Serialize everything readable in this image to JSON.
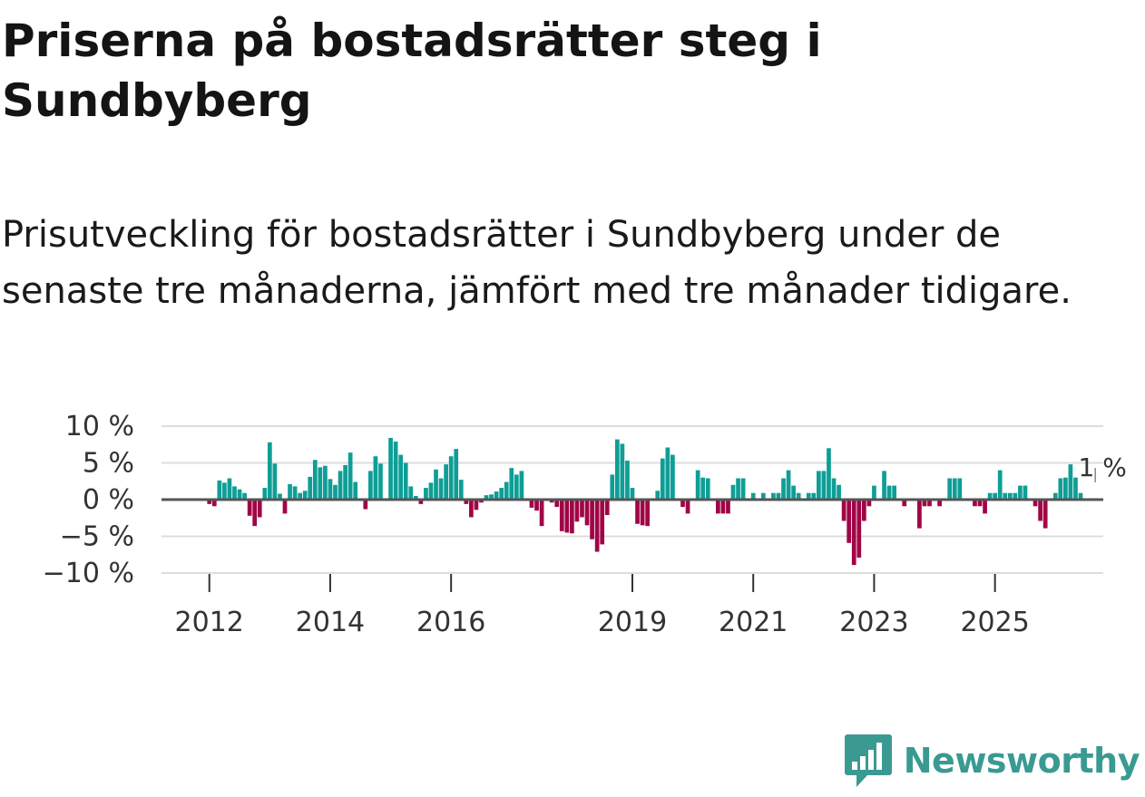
{
  "title": "Priserna på bostadsrätter steg i Sundbyberg",
  "subtitle": "Prisutveckling för bostadsrätter i Sundbyberg under de senaste tre månaderna, jämfört med tre månader tidigare.",
  "logo": {
    "text": "Newsworthy",
    "icon": "newsworthy-chart-bubble-icon"
  },
  "colors": {
    "positive": "#0e9e96",
    "negative": "#a00546",
    "grid": "#dddddd",
    "zero": "#555555",
    "logo": "#3a9a92"
  },
  "chart_data": {
    "type": "bar",
    "title": "",
    "xlabel": "",
    "ylabel": "",
    "ylim": [
      -10.5,
      10.5
    ],
    "y_ticks": [
      {
        "value": 10,
        "label": "10 %"
      },
      {
        "value": 5,
        "label": "5 %"
      },
      {
        "value": 0,
        "label": "0 %"
      },
      {
        "value": -5,
        "label": "−5 %"
      },
      {
        "value": -10,
        "label": "−10 %"
      }
    ],
    "x_ticks": [
      {
        "month_index": 0,
        "label": "2012"
      },
      {
        "month_index": 24,
        "label": "2014"
      },
      {
        "month_index": 48,
        "label": "2016"
      },
      {
        "month_index": 84,
        "label": "2019"
      },
      {
        "month_index": 108,
        "label": "2021"
      },
      {
        "month_index": 132,
        "label": "2023"
      },
      {
        "month_index": 156,
        "label": "2025"
      }
    ],
    "x_start_index": -9,
    "x_end_index": 177,
    "first_month": "2012-01",
    "series": [
      {
        "name": "Prisutveckling",
        "values": [
          -0.6,
          -0.9,
          2.6,
          2.3,
          2.9,
          1.8,
          1.4,
          0.9,
          -2.2,
          -3.6,
          -2.4,
          1.6,
          7.8,
          4.9,
          0.8,
          -1.9,
          2.1,
          1.8,
          0.9,
          1.2,
          3.1,
          5.4,
          4.4,
          4.6,
          2.8,
          2.0,
          3.9,
          4.7,
          6.4,
          2.4,
          0,
          -1.3,
          3.9,
          5.9,
          4.9,
          0,
          8.4,
          7.9,
          6.1,
          5.0,
          1.8,
          0.5,
          -0.6,
          1.6,
          2.3,
          4.1,
          2.9,
          4.8,
          5.9,
          6.9,
          2.7,
          -0.6,
          -2.4,
          -1.4,
          -0.4,
          0.6,
          0.7,
          1.1,
          1.6,
          2.4,
          4.3,
          3.4,
          3.9,
          0,
          -1.1,
          -1.5,
          -3.6,
          0,
          -0.4,
          -1.0,
          -4.3,
          -4.5,
          -4.6,
          -3.0,
          -2.4,
          -3.5,
          -5.4,
          -7.1,
          -6.1,
          -2.1,
          3.4,
          8.2,
          7.6,
          5.3,
          1.6,
          -3.3,
          -3.5,
          -3.6,
          0,
          1.2,
          5.6,
          7.1,
          6.1,
          0,
          -1.0,
          -1.9,
          0,
          4.0,
          3.0,
          2.9,
          0,
          -1.9,
          -1.9,
          -1.9,
          2.0,
          2.9,
          2.9,
          0,
          0.9,
          0,
          0.9,
          0,
          0.9,
          0.9,
          2.9,
          4.0,
          1.9,
          0.9,
          0,
          0.9,
          0.9,
          3.9,
          3.9,
          7.0,
          2.9,
          2.0,
          -2.9,
          -5.9,
          -8.9,
          -7.9,
          -2.9,
          -0.9,
          1.9,
          0,
          3.9,
          1.9,
          1.9,
          0,
          -0.9,
          0,
          0,
          -3.9,
          -0.9,
          -0.9,
          0,
          -0.9,
          0,
          2.9,
          2.9,
          2.9,
          0,
          0,
          -0.9,
          -0.9,
          -1.9,
          0.9,
          0.9,
          4.0,
          0.9,
          0.9,
          0.9,
          1.9,
          1.9,
          0,
          -0.9,
          -2.9,
          -3.9,
          0,
          0.9,
          2.9,
          3.0,
          4.8,
          3.0,
          0.9
        ]
      }
    ],
    "annotations": [
      {
        "month_index": 177,
        "text": "1 %"
      }
    ]
  }
}
